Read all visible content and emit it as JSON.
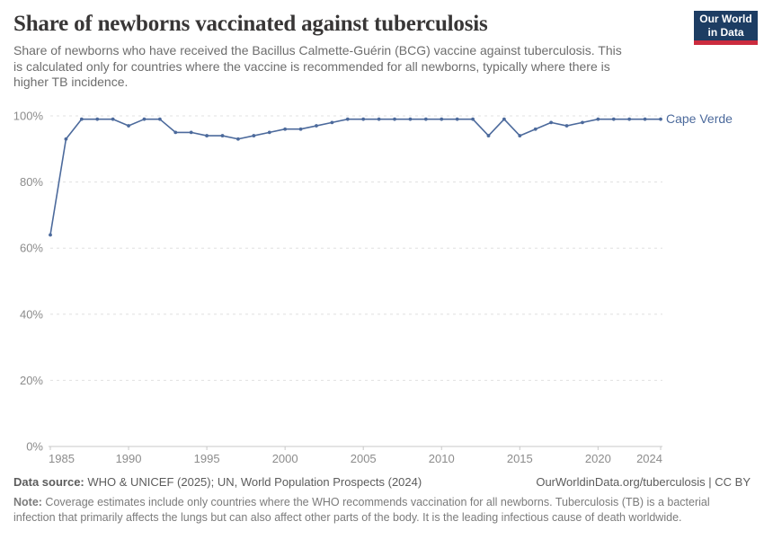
{
  "header": {
    "title": "Share of newborns vaccinated against tuberculosis",
    "subtitle_lines": [
      "Share of newborns who have received the Bacillus Calmette-Guérin (BCG) vaccine against tuberculosis. This",
      "is calculated only for countries where the vaccine is recommended for all newborns, typically where there is",
      "higher TB incidence."
    ],
    "logo": {
      "line1": "Our World",
      "line2": "in Data"
    }
  },
  "chart_data": {
    "type": "line",
    "title": "Share of newborns vaccinated against tuberculosis",
    "entity": "Cape Verde",
    "unit": "%",
    "x": [
      1985,
      1986,
      1987,
      1988,
      1989,
      1990,
      1991,
      1992,
      1993,
      1994,
      1995,
      1996,
      1997,
      1998,
      1999,
      2000,
      2001,
      2002,
      2003,
      2004,
      2005,
      2006,
      2007,
      2008,
      2009,
      2010,
      2011,
      2012,
      2013,
      2014,
      2015,
      2016,
      2017,
      2018,
      2019,
      2020,
      2021,
      2022,
      2023,
      2024
    ],
    "series": [
      {
        "name": "Cape Verde",
        "values": [
          64,
          93,
          99,
          99,
          99,
          97,
          99,
          99,
          95,
          95,
          94,
          94,
          93,
          94,
          95,
          96,
          96,
          97,
          98,
          99,
          99,
          99,
          99,
          99,
          99,
          99,
          99,
          99,
          94,
          99,
          94,
          96,
          98,
          97,
          98,
          99,
          99,
          99,
          99,
          99
        ]
      }
    ],
    "xlim": [
      1985,
      2024
    ],
    "ylim": [
      0,
      100
    ],
    "x_ticks": [
      1985,
      1990,
      1995,
      2000,
      2005,
      2010,
      2015,
      2020,
      2024
    ],
    "y_ticks": [
      0,
      20,
      40,
      60,
      80,
      100
    ],
    "grid": true,
    "legend_position": "end-of-line-label"
  },
  "colors": {
    "line": "#4C6A9C",
    "entity_label": "#4C6A9C",
    "grid": "#e0e0e0",
    "axis": "#c8c8c8",
    "axis_text": "#8c8c8c",
    "logo_bg": "#1d3d63",
    "logo_red": "#cb2b3e"
  },
  "footer": {
    "source_label": "Data source:",
    "source_text": " WHO & UNICEF (2025); UN, World Population Prospects (2024)",
    "url_text": "OurWorldinData.org/tuberculosis | CC BY",
    "note_label": "Note:",
    "note_lines": [
      " Coverage estimates include only countries where the WHO recommends vaccination for all newborns. Tuberculosis (TB) is a bacterial",
      "infection that primarily affects the lungs but can also affect other parts of the body. It is the leading infectious cause of death worldwide."
    ]
  }
}
